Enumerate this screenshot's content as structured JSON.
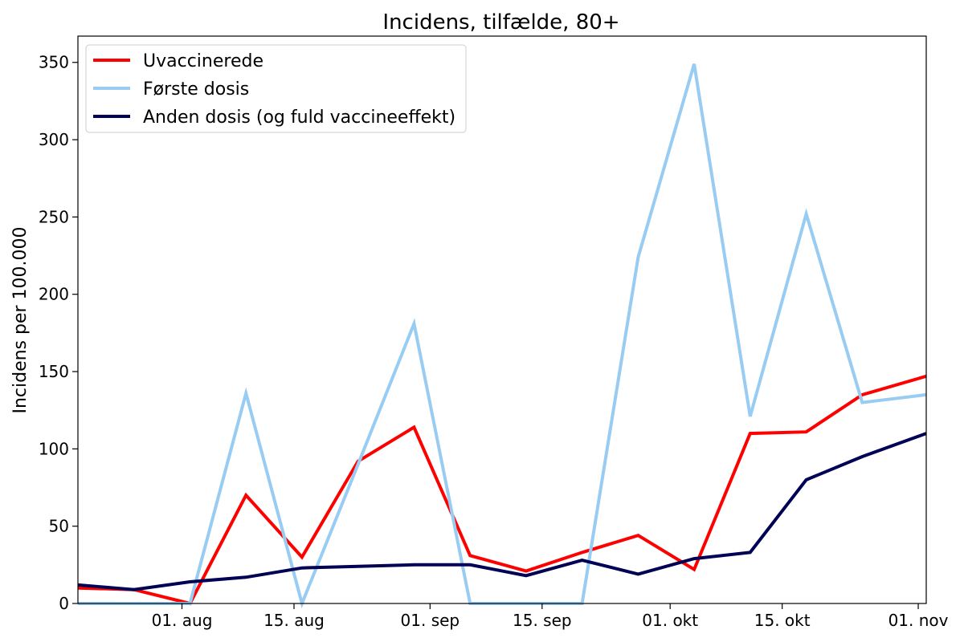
{
  "chart_data": {
    "type": "line",
    "title": "Incidens, tilfælde, 80+",
    "xlabel": "",
    "ylabel": "Incidens per 100.000",
    "x_ticks": [
      "01. aug",
      "15. aug",
      "01. sep",
      "15. sep",
      "01. okt",
      "15. okt",
      "01. nov"
    ],
    "y_ticks": [
      "0",
      "50",
      "100",
      "150",
      "200",
      "250",
      "300",
      "350"
    ],
    "ylim": [
      0,
      367
    ],
    "xlim": [
      "2021-07-19",
      "2021-11-02"
    ],
    "grid": false,
    "legend_position": "top-left",
    "x": [
      "2021-07-19",
      "2021-07-26",
      "2021-08-02",
      "2021-08-09",
      "2021-08-16",
      "2021-08-23",
      "2021-08-30",
      "2021-09-06",
      "2021-09-13",
      "2021-09-20",
      "2021-09-27",
      "2021-10-04",
      "2021-10-11",
      "2021-10-18",
      "2021-10-25",
      "2021-11-02"
    ],
    "series": [
      {
        "name": "Uvaccinerede",
        "color": "#ff0000",
        "values": [
          10,
          9,
          0,
          70,
          30,
          92,
          114,
          31,
          21,
          33,
          44,
          22,
          110,
          111,
          135,
          147
        ]
      },
      {
        "name": "Første dosis",
        "color": "#99ccf2",
        "values": [
          0,
          0,
          0,
          136,
          0,
          90,
          181,
          0,
          0,
          0,
          224,
          349,
          121,
          252,
          130,
          135
        ]
      },
      {
        "name": "Anden dosis (og fuld vaccineeffekt)",
        "color": "#000055",
        "values": [
          12,
          9,
          14,
          17,
          23,
          24,
          25,
          25,
          18,
          28,
          19,
          29,
          33,
          80,
          95,
          110
        ]
      }
    ]
  }
}
